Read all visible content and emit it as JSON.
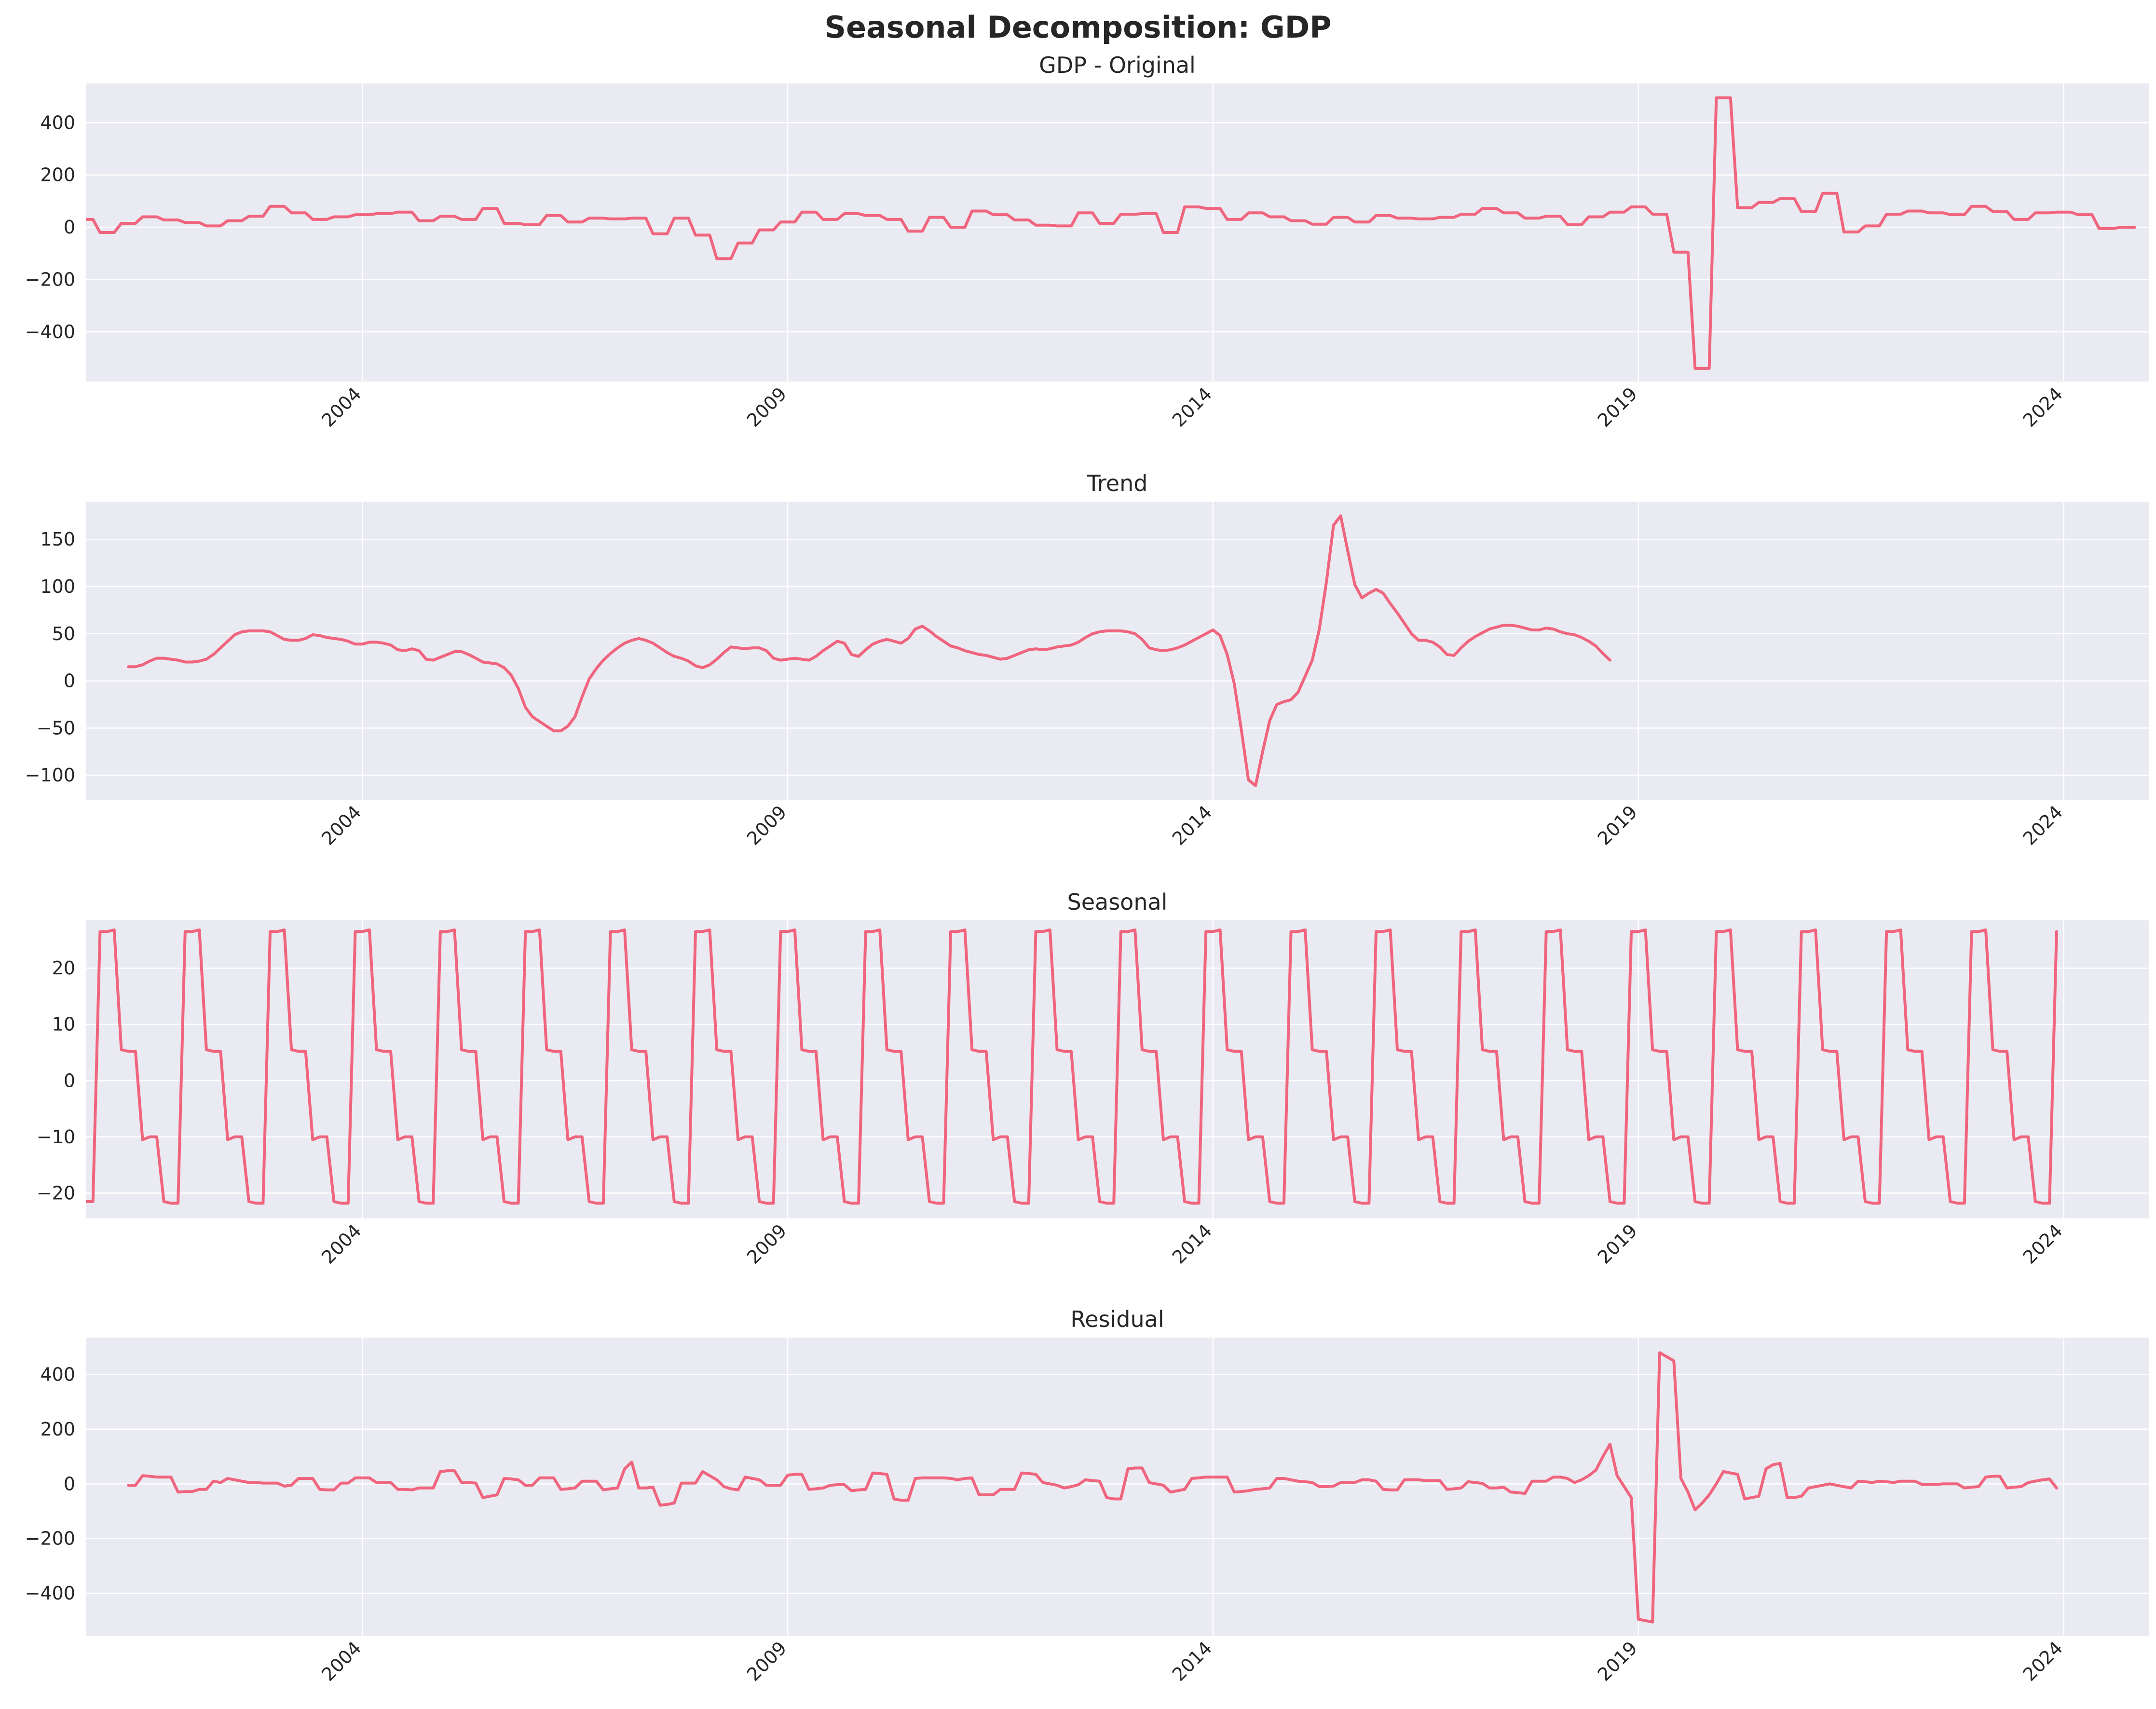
{
  "chart_data": {
    "title": "Seasonal Decomposition: GDP",
    "type": "line",
    "line_color": "#f0657e",
    "panel_background": "#eaeaf2",
    "grid": true,
    "x_start": 2000.75,
    "x_end": 2025.0,
    "x_tick_labels": [
      "2004",
      "2009",
      "2014",
      "2019",
      "2024"
    ],
    "x_tick_values": [
      2004,
      2009,
      2014,
      2019,
      2024
    ],
    "panels": [
      {
        "title": "GDP - Original",
        "ylim": [
          -590,
          550
        ],
        "yticks": [
          -400,
          -200,
          0,
          200,
          400
        ],
        "ytick_labels": [
          "−400",
          "−200",
          "0",
          "200",
          "400"
        ],
        "x_start": 2000.75,
        "step": 0.0833333,
        "values": [
          30,
          30,
          -20,
          -20,
          -20,
          15,
          15,
          15,
          40,
          40,
          40,
          28,
          28,
          28,
          18,
          18,
          18,
          5,
          5,
          5,
          25,
          25,
          25,
          42,
          42,
          42,
          80,
          80,
          80,
          55,
          55,
          55,
          30,
          30,
          30,
          40,
          40,
          40,
          48,
          48,
          48,
          52,
          52,
          52,
          58,
          58,
          58,
          25,
          25,
          25,
          42,
          42,
          42,
          30,
          30,
          30,
          72,
          72,
          72,
          15,
          15,
          15,
          10,
          10,
          10,
          45,
          45,
          45,
          20,
          20,
          20,
          35,
          35,
          35,
          32,
          32,
          32,
          35,
          35,
          35,
          -25,
          -25,
          -25,
          35,
          35,
          35,
          -30,
          -30,
          -30,
          -120,
          -120,
          -120,
          -60,
          -60,
          -60,
          -10,
          -10,
          -10,
          20,
          20,
          20,
          58,
          58,
          58,
          30,
          30,
          30,
          52,
          52,
          52,
          45,
          45,
          45,
          30,
          30,
          30,
          -15,
          -15,
          -15,
          38,
          38,
          38,
          0,
          0,
          0,
          62,
          62,
          62,
          48,
          48,
          48,
          28,
          28,
          28,
          8,
          8,
          8,
          5,
          5,
          5,
          55,
          55,
          55,
          15,
          15,
          15,
          50,
          50,
          50,
          52,
          52,
          52,
          -20,
          -20,
          -20,
          78,
          78,
          78,
          72,
          72,
          72,
          30,
          30,
          30,
          55,
          55,
          55,
          40,
          40,
          40,
          25,
          25,
          25,
          12,
          12,
          12,
          38,
          38,
          38,
          20,
          20,
          20,
          45,
          45,
          45,
          35,
          35,
          35,
          32,
          32,
          32,
          38,
          38,
          38,
          50,
          50,
          50,
          72,
          72,
          72,
          55,
          55,
          55,
          35,
          35,
          35,
          42,
          42,
          42,
          10,
          10,
          10,
          40,
          40,
          40,
          58,
          58,
          58,
          78,
          78,
          78,
          50,
          50,
          50,
          -95,
          -95,
          -95,
          -540,
          -540,
          -540,
          495,
          495,
          495,
          75,
          75,
          75,
          95,
          95,
          95,
          110,
          110,
          110,
          60,
          60,
          60,
          130,
          130,
          130,
          -18,
          -18,
          -18,
          5,
          5,
          5,
          50,
          50,
          50,
          62,
          62,
          62,
          55,
          55,
          55,
          48,
          48,
          48,
          80,
          80,
          80,
          60,
          60,
          60,
          30,
          30,
          30,
          55,
          55,
          55,
          58,
          58,
          58,
          48,
          48,
          48,
          -5,
          -5,
          -5,
          0,
          0,
          0
        ]
      },
      {
        "title": "Trend",
        "ylim": [
          -126,
          190
        ],
        "yticks": [
          -100,
          -50,
          0,
          50,
          100,
          150
        ],
        "ytick_labels": [
          "−100",
          "−50",
          "0",
          "50",
          "100",
          "150"
        ],
        "x_start": 2001.25,
        "step": 0.0833333,
        "values": [
          15,
          15,
          17,
          21,
          24,
          24,
          23,
          22,
          20,
          20,
          21,
          23,
          28,
          35,
          42,
          49,
          52,
          53,
          53,
          53,
          52,
          48,
          44,
          43,
          43,
          45,
          49,
          48,
          46,
          45,
          44,
          42,
          39,
          39,
          41,
          41,
          40,
          38,
          33,
          32,
          34,
          32,
          23,
          22,
          25,
          28,
          31,
          31,
          28,
          24,
          20,
          19,
          18,
          14,
          6,
          -8,
          -28,
          -38,
          -43,
          -48,
          -53,
          -53,
          -48,
          -38,
          -17,
          2,
          13,
          22,
          29,
          35,
          40,
          43,
          45,
          43,
          40,
          35,
          30,
          26,
          24,
          21,
          16,
          14,
          17,
          23,
          30,
          36,
          35,
          34,
          35,
          35,
          32,
          24,
          22,
          23,
          24,
          23,
          22,
          26,
          32,
          37,
          42,
          40,
          28,
          26,
          33,
          39,
          42,
          44,
          42,
          40,
          45,
          55,
          58,
          53,
          47,
          42,
          37,
          35,
          32,
          30,
          28,
          27,
          25,
          23,
          24,
          27,
          30,
          33,
          34,
          33,
          34,
          36,
          37,
          38,
          41,
          46,
          50,
          52,
          53,
          53,
          53,
          52,
          50,
          44,
          35,
          33,
          32,
          33,
          35,
          38,
          42,
          46,
          50,
          54,
          48,
          28,
          -3,
          -52,
          -105,
          -111,
          -75,
          -42,
          -25,
          -22,
          -20,
          -12,
          5,
          22,
          55,
          105,
          165,
          175,
          138,
          102,
          88,
          93,
          97,
          93,
          82,
          72,
          61,
          50,
          43,
          43,
          41,
          36,
          28,
          27,
          35,
          42,
          47,
          51,
          55,
          57,
          59,
          59,
          58,
          56,
          54,
          54,
          56,
          55,
          52,
          50,
          49,
          46,
          42,
          37,
          29,
          22
        ]
      },
      {
        "title": "Seasonal",
        "ylim": [
          -24.5,
          28.5
        ],
        "yticks": [
          -20,
          -10,
          0,
          10,
          20
        ],
        "ytick_labels": [
          "−20",
          "−10",
          "0",
          "10",
          "20"
        ],
        "x_start": 2000.75,
        "step": 0.0833333,
        "values": [
          -21.5,
          -21.5,
          26.5,
          26.5,
          26.8,
          5.5,
          5.2,
          5.2,
          -10.5,
          -10.0,
          -10.0,
          -21.5,
          -21.8,
          -21.8,
          26.5,
          26.5,
          26.8,
          5.5,
          5.2,
          5.2,
          -10.5,
          -10.0,
          -10.0,
          -21.5,
          -21.8,
          -21.8,
          26.5,
          26.5,
          26.8,
          5.5,
          5.2,
          5.2,
          -10.5,
          -10.0,
          -10.0,
          -21.5,
          -21.8,
          -21.8,
          26.5,
          26.5,
          26.8,
          5.5,
          5.2,
          5.2,
          -10.5,
          -10.0,
          -10.0,
          -21.5,
          -21.8,
          -21.8,
          26.5,
          26.5,
          26.8,
          5.5,
          5.2,
          5.2,
          -10.5,
          -10.0,
          -10.0,
          -21.5,
          -21.8,
          -21.8,
          26.5,
          26.5,
          26.8,
          5.5,
          5.2,
          5.2,
          -10.5,
          -10.0,
          -10.0,
          -21.5,
          -21.8,
          -21.8,
          26.5,
          26.5,
          26.8,
          5.5,
          5.2,
          5.2,
          -10.5,
          -10.0,
          -10.0,
          -21.5,
          -21.8,
          -21.8,
          26.5,
          26.5,
          26.8,
          5.5,
          5.2,
          5.2,
          -10.5,
          -10.0,
          -10.0,
          -21.5,
          -21.8,
          -21.8,
          26.5,
          26.5,
          26.8,
          5.5,
          5.2,
          5.2,
          -10.5,
          -10.0,
          -10.0,
          -21.5,
          -21.8,
          -21.8,
          26.5,
          26.5,
          26.8,
          5.5,
          5.2,
          5.2,
          -10.5,
          -10.0,
          -10.0,
          -21.5,
          -21.8,
          -21.8,
          26.5,
          26.5,
          26.8,
          5.5,
          5.2,
          5.2,
          -10.5,
          -10.0,
          -10.0,
          -21.5,
          -21.8,
          -21.8,
          26.5,
          26.5,
          26.8,
          5.5,
          5.2,
          5.2,
          -10.5,
          -10.0,
          -10.0,
          -21.5,
          -21.8,
          -21.8,
          26.5,
          26.5,
          26.8,
          5.5,
          5.2,
          5.2,
          -10.5,
          -10.0,
          -10.0,
          -21.5,
          -21.8,
          -21.8,
          26.5,
          26.5,
          26.8,
          5.5,
          5.2,
          5.2,
          -10.5,
          -10.0,
          -10.0,
          -21.5,
          -21.8,
          -21.8,
          26.5,
          26.5,
          26.8,
          5.5,
          5.2,
          5.2,
          -10.5,
          -10.0,
          -10.0,
          -21.5,
          -21.8,
          -21.8,
          26.5,
          26.5,
          26.8,
          5.5,
          5.2,
          5.2,
          -10.5,
          -10.0,
          -10.0,
          -21.5,
          -21.8,
          -21.8,
          26.5,
          26.5,
          26.8,
          5.5,
          5.2,
          5.2,
          -10.5,
          -10.0,
          -10.0,
          -21.5,
          -21.8,
          -21.8,
          26.5,
          26.5,
          26.8,
          5.5,
          5.2,
          5.2,
          -10.5,
          -10.0,
          -10.0,
          -21.5,
          -21.8,
          -21.8,
          26.5,
          26.5,
          26.8,
          5.5,
          5.2,
          5.2,
          -10.5,
          -10.0,
          -10.0,
          -21.5,
          -21.8,
          -21.8,
          26.5,
          26.5,
          26.8,
          5.5,
          5.2,
          5.2,
          -10.5,
          -10.0,
          -10.0,
          -21.5,
          -21.8,
          -21.8,
          26.5,
          26.5,
          26.8,
          5.5,
          5.2,
          5.2,
          -10.5,
          -10.0,
          -10.0,
          -21.5,
          -21.8,
          -21.8,
          26.5,
          26.5,
          26.8,
          5.5,
          5.2,
          5.2,
          -10.5,
          -10.0,
          -10.0,
          -21.5,
          -21.8,
          -21.8,
          26.5,
          26.5,
          26.8,
          5.5,
          5.2,
          5.2,
          -10.5,
          -10.0,
          -10.0,
          -21.5,
          -21.8,
          -21.8,
          26.5
        ]
      },
      {
        "title": "Residual",
        "ylim": [
          -555,
          535
        ],
        "yticks": [
          -400,
          -200,
          0,
          200,
          400
        ],
        "ytick_labels": [
          "−400",
          "−200",
          "0",
          "200",
          "400"
        ],
        "x_start": 2001.25,
        "step": 0.0833333,
        "values": [
          -5,
          -5,
          30,
          28,
          25,
          25,
          25,
          -30,
          -28,
          -28,
          -20,
          -20,
          10,
          5,
          20,
          15,
          10,
          5,
          5,
          3,
          3,
          3,
          -8,
          -5,
          20,
          20,
          20,
          -20,
          -22,
          -22,
          3,
          3,
          22,
          22,
          22,
          5,
          5,
          5,
          -20,
          -20,
          -22,
          -15,
          -15,
          -15,
          45,
          48,
          48,
          5,
          5,
          3,
          -50,
          -45,
          -40,
          20,
          18,
          15,
          -5,
          -5,
          22,
          22,
          22,
          -20,
          -18,
          -15,
          10,
          10,
          10,
          -22,
          -18,
          -15,
          55,
          80,
          -15,
          -15,
          -12,
          -78,
          -75,
          -70,
          3,
          3,
          3,
          45,
          30,
          15,
          -10,
          -18,
          -22,
          25,
          20,
          15,
          -5,
          -5,
          -5,
          32,
          35,
          35,
          -20,
          -18,
          -15,
          -5,
          -3,
          -3,
          -25,
          -22,
          -20,
          40,
          38,
          35,
          -55,
          -60,
          -60,
          20,
          22,
          22,
          22,
          22,
          20,
          15,
          20,
          22,
          -40,
          -40,
          -40,
          -20,
          -20,
          -20,
          40,
          38,
          35,
          5,
          0,
          -5,
          -15,
          -10,
          -3,
          15,
          12,
          10,
          -50,
          -55,
          -55,
          55,
          58,
          58,
          5,
          0,
          -5,
          -30,
          -25,
          -20,
          20,
          22,
          25,
          25,
          25,
          25,
          -30,
          -28,
          -25,
          -20,
          -18,
          -15,
          20,
          20,
          15,
          10,
          8,
          5,
          -10,
          -10,
          -8,
          5,
          5,
          5,
          15,
          15,
          10,
          -20,
          -22,
          -22,
          15,
          15,
          15,
          12,
          12,
          12,
          -20,
          -18,
          -15,
          8,
          5,
          2,
          -15,
          -15,
          -12,
          -30,
          -32,
          -35,
          10,
          10,
          10,
          25,
          25,
          20,
          5,
          15,
          30,
          50,
          100,
          145,
          30,
          -10,
          -50,
          -495,
          -500,
          -505,
          480,
          465,
          450,
          20,
          -30,
          -95,
          -70,
          -40,
          0,
          45,
          40,
          35,
          -55,
          -50,
          -45,
          55,
          70,
          75,
          -50,
          -50,
          -45,
          -15,
          -10,
          -5,
          0,
          -5,
          -10,
          -15,
          10,
          8,
          5,
          10,
          8,
          5,
          10,
          10,
          10,
          -2,
          -2,
          -2,
          0,
          0,
          0,
          -15,
          -12,
          -10,
          25,
          28,
          28,
          -15,
          -12,
          -10,
          5,
          10,
          15,
          18,
          -15
        ]
      }
    ]
  }
}
